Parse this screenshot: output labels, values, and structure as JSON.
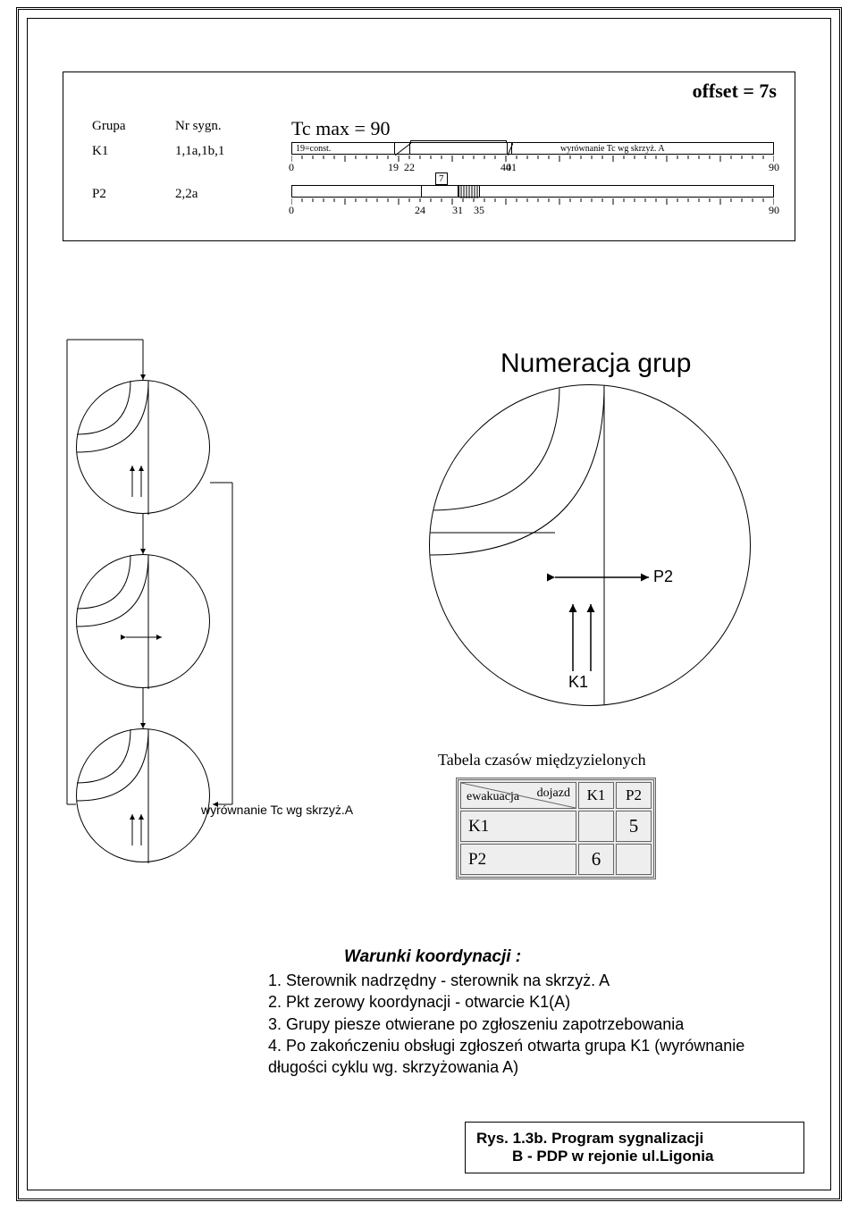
{
  "colors": {
    "bg": "#ffffff",
    "ink": "#000000",
    "table_fill": "#eeeeee",
    "table_border": "#666666"
  },
  "timing": {
    "offset_label": "offset = 7s",
    "tc_max_label": "Tc max = 90",
    "header_grupa": "Grupa",
    "header_nrsygn": "Nr sygn.",
    "rows": [
      {
        "group": "K1",
        "signals": "1,1a,1b,1"
      },
      {
        "group": "P2",
        "signals": "2,2a"
      }
    ],
    "axis_max": 90,
    "bar1": {
      "const_label": "19=const.",
      "wyrownanie_label": "wyrównanie Tc wg skrzyż. A",
      "segments": [
        0,
        19,
        22,
        40,
        41,
        90
      ],
      "tick_labels": [
        0,
        19,
        22,
        40,
        41,
        90
      ]
    },
    "bar2": {
      "seven_label": "7",
      "segments": [
        0,
        24,
        31,
        35,
        90
      ],
      "tick_labels": [
        0,
        24,
        31,
        35,
        90
      ]
    }
  },
  "numeracja": {
    "title": "Numeracja grup",
    "label_p2": "P2",
    "label_k1": "K1"
  },
  "flow_note": "wyrównanie Tc wg skrzyż.A",
  "intergreen": {
    "title": "Tabela czasów międzyzielonych",
    "dojazd": "dojazd",
    "ewakuacja": "ewakuacja",
    "cols": [
      "K1",
      "P2"
    ],
    "rows": [
      {
        "label": "K1",
        "cells": [
          "",
          "5"
        ]
      },
      {
        "label": "P2",
        "cells": [
          "6",
          ""
        ]
      }
    ]
  },
  "conditions": {
    "title": "Warunki koordynacji  :",
    "items": [
      "Sterownik nadrzędny - sterownik na skrzyż. A",
      "Pkt zerowy koordynacji - otwarcie K1(A)",
      "Grupy piesze otwierane po zgłoszeniu zapotrzebowania",
      "Po zakończeniu obsługi zgłoszeń otwarta grupa K1 (wyrównanie długości cyklu wg. skrzyżowania A)"
    ]
  },
  "caption": {
    "line1": "Rys. 1.3b. Program sygnalizacji",
    "line2": "B - PDP w rejonie ul.Ligonia"
  }
}
